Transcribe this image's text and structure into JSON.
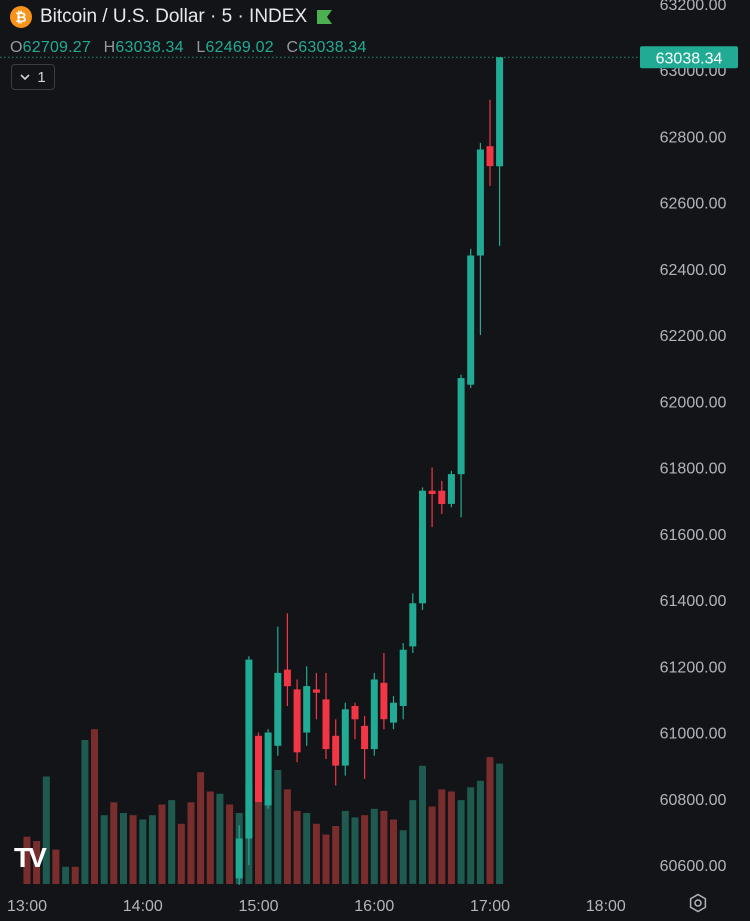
{
  "header": {
    "title": "Bitcoin / U.S. Dollar · 5 · INDEX",
    "icon": "bitcoin-icon",
    "flag_color": "#4caf50"
  },
  "ohlc": {
    "o_label": "O",
    "o_value": "62709.27",
    "h_label": "H",
    "h_value": "63038.34",
    "l_label": "L",
    "l_value": "62469.02",
    "c_label": "C",
    "c_value": "63038.34"
  },
  "indicators_button": {
    "label": "1"
  },
  "logo": "TV",
  "colors": {
    "background": "#131417",
    "up": "#22ab94",
    "down": "#f23645",
    "up_volume": "#1e5a4f",
    "down_volume": "#7a2d2d",
    "axis_text": "#b2b5be",
    "last_price_bg": "#22ab94"
  },
  "chart_data": {
    "type": "candlestick",
    "title": "Bitcoin / U.S. Dollar · 5 · INDEX",
    "ylim": [
      60520,
      63200
    ],
    "y_ticks": [
      "60600.00",
      "60800.00",
      "61000.00",
      "61200.00",
      "61400.00",
      "61600.00",
      "61800.00",
      "62000.00",
      "62200.00",
      "62400.00",
      "62600.00",
      "62800.00",
      "63000.00",
      "63200.00"
    ],
    "x_ticks": [
      "13:00",
      "14:00",
      "15:00",
      "16:00",
      "17:00",
      "18:00"
    ],
    "x_tick_minutes": [
      780,
      840,
      900,
      960,
      1020,
      1080
    ],
    "x_range_minutes": [
      780,
      1106
    ],
    "last_price": "63038.34",
    "candles": [
      {
        "t": 890,
        "o": 60560,
        "h": 60720,
        "l": 60540,
        "c": 60680
      },
      {
        "t": 895,
        "o": 60680,
        "h": 61230,
        "l": 60600,
        "c": 61220
      },
      {
        "t": 900,
        "o": 60990,
        "h": 61000,
        "l": 60800,
        "c": 60790
      },
      {
        "t": 905,
        "o": 60780,
        "h": 61010,
        "l": 60770,
        "c": 61000
      },
      {
        "t": 910,
        "o": 60960,
        "h": 61320,
        "l": 60930,
        "c": 61180
      },
      {
        "t": 915,
        "o": 61190,
        "h": 61360,
        "l": 61080,
        "c": 61140
      },
      {
        "t": 920,
        "o": 61130,
        "h": 61160,
        "l": 60910,
        "c": 60940
      },
      {
        "t": 925,
        "o": 61000,
        "h": 61200,
        "l": 60960,
        "c": 61140
      },
      {
        "t": 930,
        "o": 61130,
        "h": 61180,
        "l": 61040,
        "c": 61120
      },
      {
        "t": 935,
        "o": 61100,
        "h": 61180,
        "l": 60920,
        "c": 60950
      },
      {
        "t": 940,
        "o": 60990,
        "h": 61040,
        "l": 60840,
        "c": 60900
      },
      {
        "t": 945,
        "o": 60900,
        "h": 61090,
        "l": 60870,
        "c": 61070
      },
      {
        "t": 950,
        "o": 61080,
        "h": 61090,
        "l": 60980,
        "c": 61040
      },
      {
        "t": 955,
        "o": 61020,
        "h": 61050,
        "l": 60860,
        "c": 60950
      },
      {
        "t": 960,
        "o": 60950,
        "h": 61180,
        "l": 60930,
        "c": 61160
      },
      {
        "t": 965,
        "o": 61150,
        "h": 61240,
        "l": 61010,
        "c": 61040
      },
      {
        "t": 970,
        "o": 61030,
        "h": 61110,
        "l": 61010,
        "c": 61090
      },
      {
        "t": 975,
        "o": 61080,
        "h": 61270,
        "l": 61040,
        "c": 61250
      },
      {
        "t": 980,
        "o": 61260,
        "h": 61420,
        "l": 61240,
        "c": 61390
      },
      {
        "t": 985,
        "o": 61390,
        "h": 61740,
        "l": 61370,
        "c": 61730
      },
      {
        "t": 990,
        "o": 61730,
        "h": 61800,
        "l": 61620,
        "c": 61720
      },
      {
        "t": 995,
        "o": 61730,
        "h": 61760,
        "l": 61660,
        "c": 61690
      },
      {
        "t": 1000,
        "o": 61690,
        "h": 61790,
        "l": 61680,
        "c": 61780
      },
      {
        "t": 1005,
        "o": 61780,
        "h": 62080,
        "l": 61650,
        "c": 62070
      },
      {
        "t": 1010,
        "o": 62050,
        "h": 62460,
        "l": 62040,
        "c": 62440
      },
      {
        "t": 1015,
        "o": 62440,
        "h": 62780,
        "l": 62200,
        "c": 62760
      },
      {
        "t": 1020,
        "o": 62770,
        "h": 62910,
        "l": 62650,
        "c": 62710
      },
      {
        "t": 1025,
        "o": 62709.27,
        "h": 63038.34,
        "l": 62469.02,
        "c": 63038.34
      }
    ],
    "volume_ylim": [
      0,
      100
    ],
    "volume": [
      {
        "t": 780,
        "v": 22,
        "up": false
      },
      {
        "t": 785,
        "v": 20,
        "up": false
      },
      {
        "t": 790,
        "v": 50,
        "up": true
      },
      {
        "t": 795,
        "v": 16,
        "up": false
      },
      {
        "t": 800,
        "v": 8,
        "up": true
      },
      {
        "t": 805,
        "v": 8,
        "up": false
      },
      {
        "t": 810,
        "v": 67,
        "up": true
      },
      {
        "t": 815,
        "v": 72,
        "up": false
      },
      {
        "t": 820,
        "v": 32,
        "up": true
      },
      {
        "t": 825,
        "v": 38,
        "up": false
      },
      {
        "t": 830,
        "v": 33,
        "up": true
      },
      {
        "t": 835,
        "v": 32,
        "up": false
      },
      {
        "t": 840,
        "v": 30,
        "up": true
      },
      {
        "t": 845,
        "v": 32,
        "up": true
      },
      {
        "t": 850,
        "v": 37,
        "up": false
      },
      {
        "t": 855,
        "v": 39,
        "up": true
      },
      {
        "t": 860,
        "v": 28,
        "up": false
      },
      {
        "t": 865,
        "v": 38,
        "up": false
      },
      {
        "t": 870,
        "v": 52,
        "up": false
      },
      {
        "t": 875,
        "v": 43,
        "up": false
      },
      {
        "t": 880,
        "v": 42,
        "up": true
      },
      {
        "t": 885,
        "v": 37,
        "up": false
      },
      {
        "t": 890,
        "v": 33,
        "up": true
      },
      {
        "t": 895,
        "v": 48,
        "up": true
      },
      {
        "t": 900,
        "v": 55,
        "up": false
      },
      {
        "t": 905,
        "v": 44,
        "up": true
      },
      {
        "t": 910,
        "v": 53,
        "up": true
      },
      {
        "t": 915,
        "v": 44,
        "up": false
      },
      {
        "t": 920,
        "v": 34,
        "up": false
      },
      {
        "t": 925,
        "v": 33,
        "up": true
      },
      {
        "t": 930,
        "v": 28,
        "up": false
      },
      {
        "t": 935,
        "v": 23,
        "up": false
      },
      {
        "t": 940,
        "v": 27,
        "up": false
      },
      {
        "t": 945,
        "v": 34,
        "up": true
      },
      {
        "t": 950,
        "v": 31,
        "up": true
      },
      {
        "t": 955,
        "v": 32,
        "up": false
      },
      {
        "t": 960,
        "v": 35,
        "up": true
      },
      {
        "t": 965,
        "v": 34,
        "up": false
      },
      {
        "t": 970,
        "v": 30,
        "up": false
      },
      {
        "t": 975,
        "v": 25,
        "up": true
      },
      {
        "t": 980,
        "v": 39,
        "up": true
      },
      {
        "t": 985,
        "v": 55,
        "up": true
      },
      {
        "t": 990,
        "v": 36,
        "up": false
      },
      {
        "t": 995,
        "v": 44,
        "up": false
      },
      {
        "t": 1000,
        "v": 43,
        "up": false
      },
      {
        "t": 1005,
        "v": 39,
        "up": true
      },
      {
        "t": 1010,
        "v": 45,
        "up": true
      },
      {
        "t": 1015,
        "v": 48,
        "up": true
      },
      {
        "t": 1020,
        "v": 59,
        "up": false
      },
      {
        "t": 1025,
        "v": 56,
        "up": true
      }
    ]
  }
}
